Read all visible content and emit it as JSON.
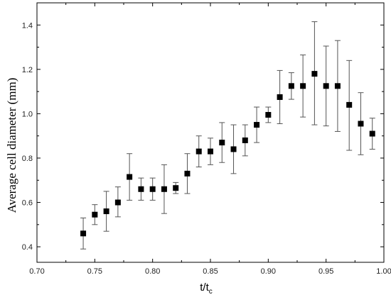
{
  "chart_data": {
    "type": "scatter",
    "title": "",
    "xlabel": "t/t",
    "xlabel_subscript": "c",
    "ylabel": "Average cell diameter (mm)",
    "xlim": [
      0.7,
      1.0
    ],
    "ylim": [
      0.33,
      1.5
    ],
    "x_ticks": [
      "0.70",
      "0.75",
      "0.80",
      "0.85",
      "0.90",
      "0.95",
      "1.00"
    ],
    "y_ticks": [
      "0.4",
      "0.6",
      "0.8",
      "1.0",
      "1.2",
      "1.4"
    ],
    "grid": false,
    "legend": "none",
    "marker": "square",
    "marker_color": "#000000",
    "errorbar_color": "#555555",
    "points": [
      {
        "x": 0.74,
        "y": 0.46,
        "lo": 0.39,
        "hi": 0.53
      },
      {
        "x": 0.75,
        "y": 0.545,
        "lo": 0.5,
        "hi": 0.59
      },
      {
        "x": 0.76,
        "y": 0.56,
        "lo": 0.47,
        "hi": 0.65
      },
      {
        "x": 0.77,
        "y": 0.6,
        "lo": 0.535,
        "hi": 0.67
      },
      {
        "x": 0.78,
        "y": 0.715,
        "lo": 0.61,
        "hi": 0.82
      },
      {
        "x": 0.79,
        "y": 0.66,
        "lo": 0.61,
        "hi": 0.71
      },
      {
        "x": 0.8,
        "y": 0.66,
        "lo": 0.61,
        "hi": 0.71
      },
      {
        "x": 0.81,
        "y": 0.66,
        "lo": 0.55,
        "hi": 0.77
      },
      {
        "x": 0.82,
        "y": 0.665,
        "lo": 0.64,
        "hi": 0.69
      },
      {
        "x": 0.83,
        "y": 0.73,
        "lo": 0.64,
        "hi": 0.82
      },
      {
        "x": 0.84,
        "y": 0.83,
        "lo": 0.76,
        "hi": 0.9
      },
      {
        "x": 0.85,
        "y": 0.83,
        "lo": 0.77,
        "hi": 0.89
      },
      {
        "x": 0.86,
        "y": 0.87,
        "lo": 0.78,
        "hi": 0.96
      },
      {
        "x": 0.87,
        "y": 0.84,
        "lo": 0.73,
        "hi": 0.95
      },
      {
        "x": 0.88,
        "y": 0.88,
        "lo": 0.81,
        "hi": 0.95
      },
      {
        "x": 0.89,
        "y": 0.95,
        "lo": 0.87,
        "hi": 1.03
      },
      {
        "x": 0.9,
        "y": 0.995,
        "lo": 0.96,
        "hi": 1.03
      },
      {
        "x": 0.91,
        "y": 1.075,
        "lo": 0.955,
        "hi": 1.195
      },
      {
        "x": 0.92,
        "y": 1.125,
        "lo": 1.065,
        "hi": 1.185
      },
      {
        "x": 0.93,
        "y": 1.125,
        "lo": 0.985,
        "hi": 1.265
      },
      {
        "x": 0.94,
        "y": 1.18,
        "lo": 0.95,
        "hi": 1.415
      },
      {
        "x": 0.95,
        "y": 1.125,
        "lo": 0.945,
        "hi": 1.305
      },
      {
        "x": 0.96,
        "y": 1.125,
        "lo": 0.92,
        "hi": 1.33
      },
      {
        "x": 0.97,
        "y": 1.04,
        "lo": 0.835,
        "hi": 1.24
      },
      {
        "x": 0.98,
        "y": 0.955,
        "lo": 0.815,
        "hi": 1.095
      },
      {
        "x": 0.99,
        "y": 0.91,
        "lo": 0.84,
        "hi": 0.98
      }
    ]
  }
}
